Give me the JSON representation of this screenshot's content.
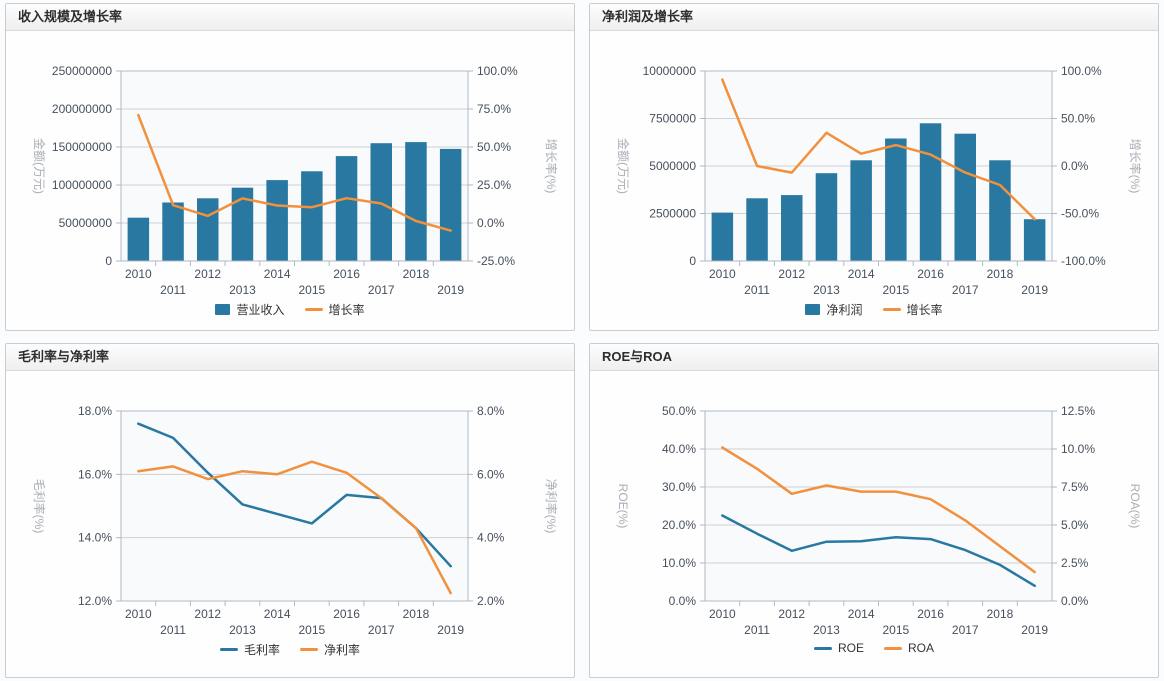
{
  "colors": {
    "bar_blue": "#2878a1",
    "line_blue": "#2878a1",
    "line_orange": "#f2913d",
    "grid": "#cdd0d4",
    "plot_border": "#aeb9c4",
    "plot_bg": "#f9fafc",
    "tick_text": "#46505d",
    "axis_title_text": "#a9aeb6"
  },
  "chart_data": [
    {
      "type": "bar-line",
      "title": "收入规模及增长率",
      "categories": [
        "2010",
        "2011",
        "2012",
        "2013",
        "2014",
        "2015",
        "2016",
        "2017",
        "2018",
        "2019"
      ],
      "left_axis": {
        "label": "金额(万元)",
        "min": 0,
        "max": 250000000,
        "tick_labels": [
          "0",
          "50000000",
          "100000000",
          "150000000",
          "200000000",
          "250000000"
        ]
      },
      "right_axis": {
        "label": "增长率(%)",
        "min": -25,
        "max": 100,
        "tick_labels": [
          "-25.0%",
          "0.0%",
          "25.0%",
          "50.0%",
          "75.0%",
          "100.0%"
        ]
      },
      "series": [
        {
          "name": "营业收入",
          "type": "bar",
          "axis": "left",
          "color_key": "bar_blue",
          "values": [
            57000000,
            77000000,
            82500000,
            96500000,
            106500000,
            118000000,
            138000000,
            155000000,
            156500000,
            147500000
          ]
        },
        {
          "name": "增长率",
          "type": "line",
          "axis": "right",
          "color_key": "line_orange",
          "values": [
            71,
            11.7,
            4.7,
            16.2,
            11.5,
            10.4,
            16.3,
            12.8,
            1.3,
            -5
          ]
        }
      ]
    },
    {
      "type": "bar-line",
      "title": "净利润及增长率",
      "categories": [
        "2010",
        "2011",
        "2012",
        "2013",
        "2014",
        "2015",
        "2016",
        "2017",
        "2018",
        "2019"
      ],
      "left_axis": {
        "label": "金额(万元)",
        "min": 0,
        "max": 10000000,
        "tick_labels": [
          "0",
          "2500000",
          "5000000",
          "7500000",
          "10000000"
        ]
      },
      "right_axis": {
        "label": "增长率(%)",
        "min": -100,
        "max": 100,
        "tick_labels": [
          "-100.0%",
          "-50.0%",
          "0.0%",
          "50.0%",
          "100.0%"
        ]
      },
      "series": [
        {
          "name": "净利润",
          "type": "bar",
          "axis": "left",
          "color_key": "bar_blue",
          "values": [
            2550000,
            3300000,
            3470000,
            4620000,
            5300000,
            6450000,
            7250000,
            6700000,
            5300000,
            2200000
          ]
        },
        {
          "name": "增长率",
          "type": "line",
          "axis": "right",
          "color_key": "line_orange",
          "values": [
            91,
            0,
            -7,
            35,
            13,
            22,
            12,
            -7,
            -20,
            -56
          ]
        }
      ]
    },
    {
      "type": "line",
      "title": "毛利率与净利率",
      "categories": [
        "2010",
        "2011",
        "2012",
        "2013",
        "2014",
        "2015",
        "2016",
        "2017",
        "2018",
        "2019"
      ],
      "left_axis": {
        "label": "毛利率(%)",
        "min": 12,
        "max": 18,
        "tick_labels": [
          "12.0%",
          "14.0%",
          "16.0%",
          "18.0%"
        ]
      },
      "right_axis": {
        "label": "净利率(%)",
        "min": 2,
        "max": 8,
        "tick_labels": [
          "2.0%",
          "4.0%",
          "6.0%",
          "8.0%"
        ]
      },
      "series": [
        {
          "name": "毛利率",
          "type": "line",
          "axis": "left",
          "color_key": "line_blue",
          "values": [
            17.6,
            17.15,
            16.05,
            15.05,
            14.75,
            14.45,
            15.35,
            15.25,
            14.3,
            13.1
          ]
        },
        {
          "name": "净利率",
          "type": "line",
          "axis": "right",
          "color_key": "line_orange",
          "values": [
            6.1,
            6.25,
            5.85,
            6.1,
            6.0,
            6.4,
            6.05,
            5.25,
            4.3,
            2.25
          ]
        }
      ]
    },
    {
      "type": "line",
      "title": "ROE与ROA",
      "categories": [
        "2010",
        "2011",
        "2012",
        "2013",
        "2014",
        "2015",
        "2016",
        "2017",
        "2018",
        "2019"
      ],
      "left_axis": {
        "label": "ROE(%)",
        "min": 0,
        "max": 50,
        "tick_labels": [
          "0.0%",
          "10.0%",
          "20.0%",
          "30.0%",
          "40.0%",
          "50.0%"
        ]
      },
      "right_axis": {
        "label": "ROA(%)",
        "min": 0,
        "max": 12.5,
        "tick_labels": [
          "0.0%",
          "2.5%",
          "5.0%",
          "7.5%",
          "10.0%",
          "12.5%"
        ]
      },
      "series": [
        {
          "name": "ROE",
          "type": "line",
          "axis": "left",
          "color_key": "line_blue",
          "values": [
            22.5,
            17.7,
            13.2,
            15.6,
            15.7,
            16.8,
            16.3,
            13.4,
            9.5,
            4.0
          ]
        },
        {
          "name": "ROA",
          "type": "line",
          "axis": "right",
          "color_key": "line_orange",
          "values": [
            10.1,
            8.7,
            7.05,
            7.6,
            7.2,
            7.2,
            6.7,
            5.3,
            3.6,
            1.9
          ]
        }
      ]
    }
  ]
}
